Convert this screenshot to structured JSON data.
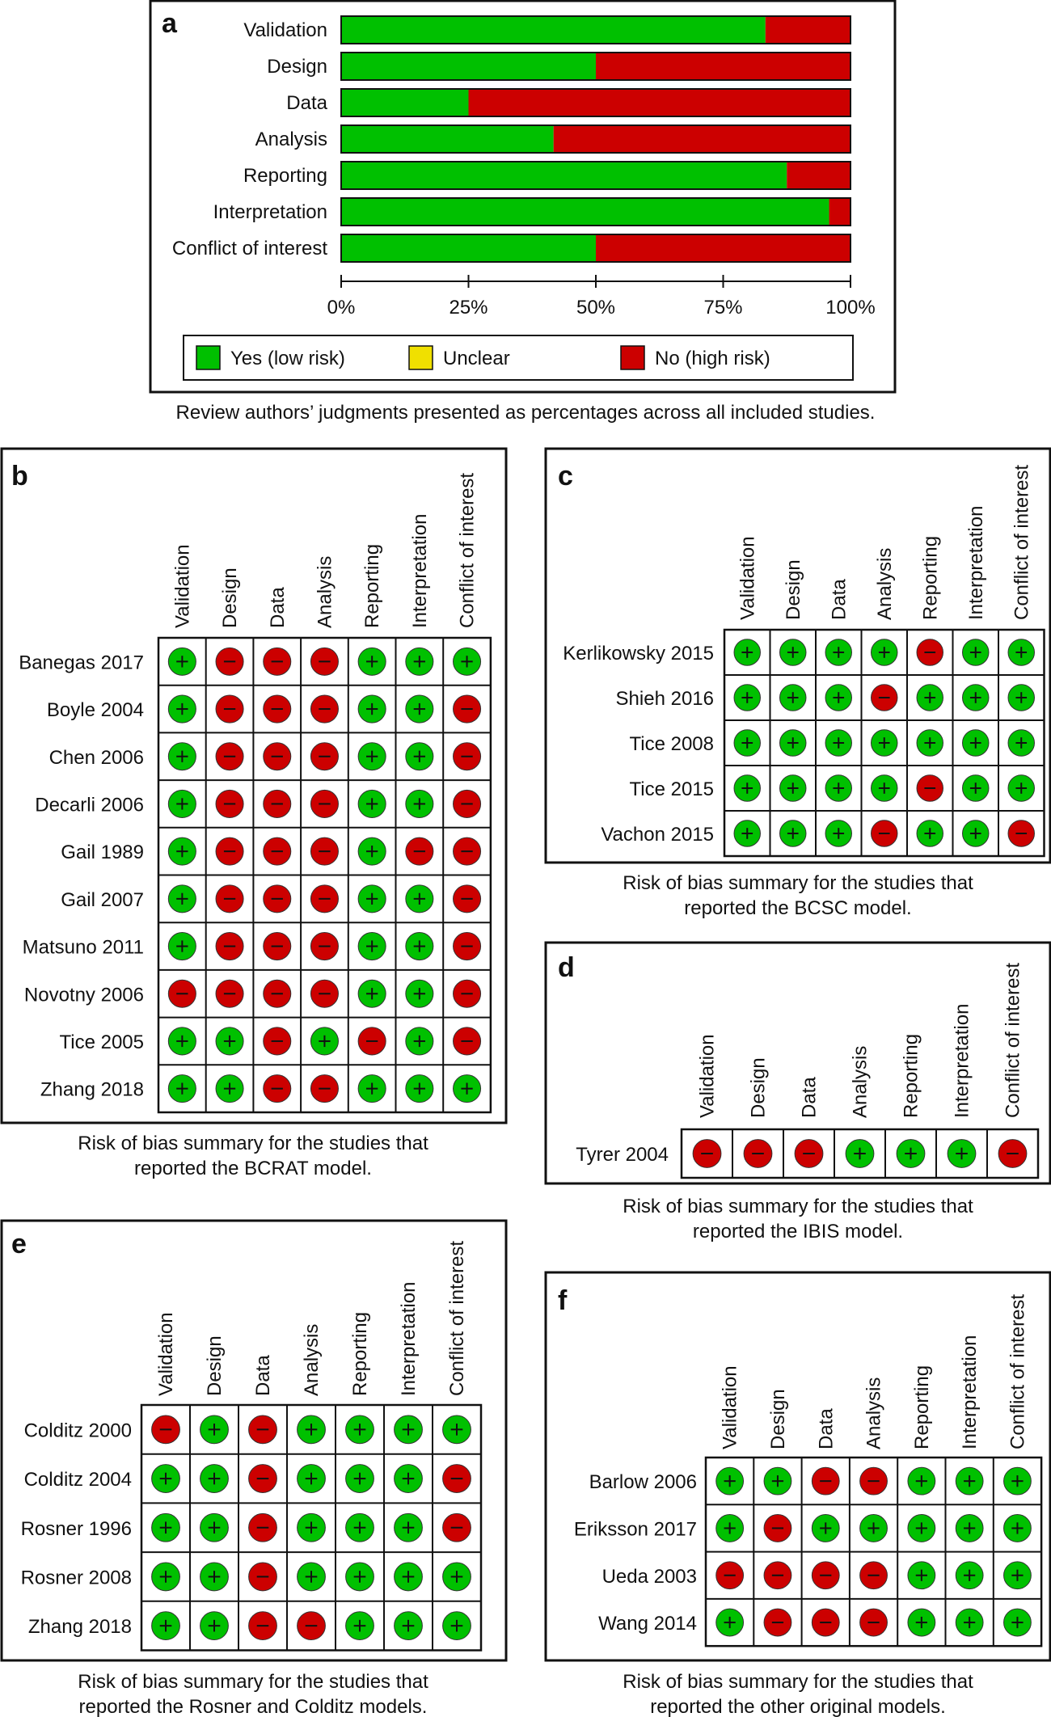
{
  "colors": {
    "low": "#00c000",
    "unclear": "#f0e000",
    "high": "#cc0000",
    "border": "#111111"
  },
  "icons": {
    "low": "plus-icon",
    "high": "minus-icon"
  },
  "chart_data": [
    {
      "id": "a",
      "type": "bar",
      "stacked": true,
      "orientation": "horizontal",
      "panel_label": "a",
      "categories": [
        "Validation",
        "Design",
        "Data",
        "Analysis",
        "Reporting",
        "Interpretation",
        "Conflict of interest"
      ],
      "series": [
        {
          "name": "Yes (low risk)",
          "key": "low",
          "values": [
            83.3,
            50.0,
            25.0,
            41.7,
            87.5,
            95.8,
            50.0
          ]
        },
        {
          "name": "Unclear",
          "key": "unclear",
          "values": [
            0,
            0,
            0,
            0,
            0,
            0,
            0
          ]
        },
        {
          "name": "No (high risk)",
          "key": "high",
          "values": [
            16.7,
            50.0,
            75.0,
            58.3,
            12.5,
            4.2,
            50.0
          ]
        }
      ],
      "xlim": [
        0,
        100
      ],
      "ticks": [
        "0%",
        "25%",
        "50%",
        "75%",
        "100%"
      ],
      "legend": [
        "Yes (low risk)",
        "Unclear",
        "No (high risk)"
      ],
      "caption": "Review authors’ judgments presented as percentages across all included studies."
    },
    {
      "id": "b",
      "type": "table",
      "panel_label": "b",
      "columns": [
        "Validation",
        "Design",
        "Data",
        "Analysis",
        "Reporting",
        "Interpretation",
        "Conflict of interest"
      ],
      "studies": [
        "Banegas 2017",
        "Boyle 2004",
        "Chen 2006",
        "Decarli 2006",
        "Gail 1989",
        "Gail 2007",
        "Matsuno 2011",
        "Novotny 2006",
        "Tice 2005",
        "Zhang 2018"
      ],
      "cells": [
        [
          "+",
          "-",
          "-",
          "-",
          "+",
          "+",
          "+"
        ],
        [
          "+",
          "-",
          "-",
          "-",
          "+",
          "+",
          "-"
        ],
        [
          "+",
          "-",
          "-",
          "-",
          "+",
          "+",
          "-"
        ],
        [
          "+",
          "-",
          "-",
          "-",
          "+",
          "+",
          "-"
        ],
        [
          "+",
          "-",
          "-",
          "-",
          "+",
          "-",
          "-"
        ],
        [
          "+",
          "-",
          "-",
          "-",
          "+",
          "+",
          "-"
        ],
        [
          "+",
          "-",
          "-",
          "-",
          "+",
          "+",
          "-"
        ],
        [
          "-",
          "-",
          "-",
          "-",
          "+",
          "+",
          "-"
        ],
        [
          "+",
          "+",
          "-",
          "+",
          "-",
          "+",
          "-"
        ],
        [
          "+",
          "+",
          "-",
          "-",
          "+",
          "+",
          "+"
        ]
      ],
      "caption": [
        "Risk of bias summary for the studies that",
        "reported the BCRAT model."
      ]
    },
    {
      "id": "c",
      "type": "table",
      "panel_label": "c",
      "columns": [
        "Validation",
        "Design",
        "Data",
        "Analysis",
        "Reporting",
        "Interpretation",
        "Conflict of interest"
      ],
      "studies": [
        "Kerlikowsky 2015",
        "Shieh 2016",
        "Tice 2008",
        "Tice 2015",
        "Vachon 2015"
      ],
      "cells": [
        [
          "+",
          "+",
          "+",
          "+",
          "-",
          "+",
          "+"
        ],
        [
          "+",
          "+",
          "+",
          "-",
          "+",
          "+",
          "+"
        ],
        [
          "+",
          "+",
          "+",
          "+",
          "+",
          "+",
          "+"
        ],
        [
          "+",
          "+",
          "+",
          "+",
          "-",
          "+",
          "+"
        ],
        [
          "+",
          "+",
          "+",
          "-",
          "+",
          "+",
          "-"
        ]
      ],
      "caption": [
        "Risk of bias summary for the studies that",
        "reported the BCSC model."
      ]
    },
    {
      "id": "d",
      "type": "table",
      "panel_label": "d",
      "columns": [
        "Validation",
        "Design",
        "Data",
        "Analysis",
        "Reporting",
        "Interpretation",
        "Conflict of interest"
      ],
      "studies": [
        "Tyrer 2004"
      ],
      "cells": [
        [
          "-",
          "-",
          "-",
          "+",
          "+",
          "+",
          "-"
        ]
      ],
      "caption": [
        "Risk of bias summary for the studies that",
        "reported the IBIS model."
      ]
    },
    {
      "id": "e",
      "type": "table",
      "panel_label": "e",
      "columns": [
        "Validation",
        "Design",
        "Data",
        "Analysis",
        "Reporting",
        "Interpretation",
        "Conflict of interest"
      ],
      "studies": [
        "Colditz 2000",
        "Colditz 2004",
        "Rosner 1996",
        "Rosner 2008",
        "Zhang 2018"
      ],
      "cells": [
        [
          "-",
          "+",
          "-",
          "+",
          "+",
          "+",
          "+"
        ],
        [
          "+",
          "+",
          "-",
          "+",
          "+",
          "+",
          "-"
        ],
        [
          "+",
          "+",
          "-",
          "+",
          "+",
          "+",
          "-"
        ],
        [
          "+",
          "+",
          "-",
          "+",
          "+",
          "+",
          "+"
        ],
        [
          "+",
          "+",
          "-",
          "-",
          "+",
          "+",
          "+"
        ]
      ],
      "caption": [
        "Risk of bias summary for the studies that",
        "reported the Rosner and Colditz models."
      ]
    },
    {
      "id": "f",
      "type": "table",
      "panel_label": "f",
      "columns": [
        "Validation",
        "Design",
        "Data",
        "Analysis",
        "Reporting",
        "Interpretation",
        "Conflict of interest"
      ],
      "studies": [
        "Barlow 2006",
        "Eriksson 2017",
        "Ueda 2003",
        "Wang 2014"
      ],
      "cells": [
        [
          "+",
          "+",
          "-",
          "-",
          "+",
          "+",
          "+"
        ],
        [
          "+",
          "-",
          "+",
          "+",
          "+",
          "+",
          "+"
        ],
        [
          "-",
          "-",
          "-",
          "-",
          "+",
          "+",
          "+"
        ],
        [
          "+",
          "-",
          "-",
          "-",
          "+",
          "+",
          "+"
        ]
      ],
      "caption": [
        "Risk of bias summary for the studies that",
        "reported the other original models."
      ]
    }
  ]
}
